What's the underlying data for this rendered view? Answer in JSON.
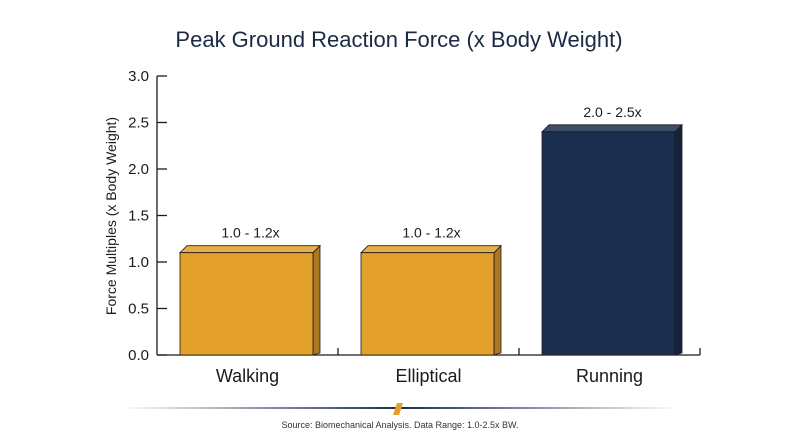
{
  "chart_data": {
    "type": "bar",
    "title": "Peak Ground Reaction Force (x Body Weight)",
    "xlabel": "",
    "ylabel": "Force Multiples (x Body Weight)",
    "categories": [
      "Walking",
      "Elliptical",
      "Running"
    ],
    "values": [
      1.1,
      1.1,
      2.4
    ],
    "data_labels": [
      "1.0 - 1.2x",
      "1.0 - 1.2x",
      "2.0 - 2.5x"
    ],
    "bar_colors": [
      "#e3a02a",
      "#e3a02a",
      "#1c2e4f"
    ],
    "ylim": [
      0,
      3.0
    ],
    "yticks": [
      "0.0",
      "0.5",
      "1.0",
      "1.5",
      "2.0",
      "2.5",
      "3.0"
    ],
    "grid": false,
    "source": "Source: Biomechanical Analysis. Data Range: 1.0-2.5x BW."
  }
}
